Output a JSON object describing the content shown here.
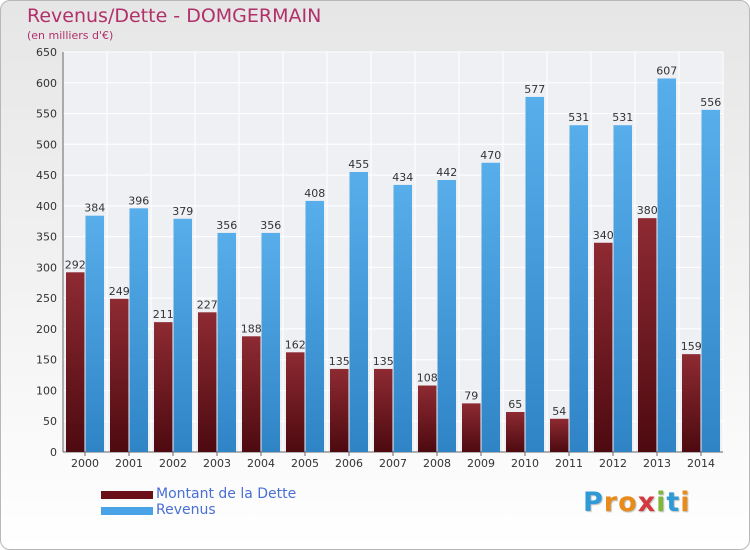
{
  "header": {
    "title": "Revenus/Dette - DOMGERMAIN",
    "subtitle": "(en milliers d'€)"
  },
  "legend": {
    "items": [
      {
        "label": "Montant de la Dette",
        "color": "#6b1018"
      },
      {
        "label": "Revenus",
        "color": "#4aa3e6"
      }
    ]
  },
  "logo": {
    "letters": [
      {
        "ch": "P",
        "color": "#2e9ad6"
      },
      {
        "ch": "r",
        "color": "#e88b1b"
      },
      {
        "ch": "o",
        "color": "#e88b1b"
      },
      {
        "ch": "x",
        "color": "#d5383d"
      },
      {
        "ch": "i",
        "color": "#7db83a"
      },
      {
        "ch": "t",
        "color": "#2e9ad6"
      },
      {
        "ch": "i",
        "color": "#e88b1b"
      }
    ]
  },
  "chart_data": {
    "type": "bar",
    "categories": [
      "2000",
      "2001",
      "2002",
      "2003",
      "2004",
      "2005",
      "2006",
      "2007",
      "2008",
      "2009",
      "2010",
      "2011",
      "2012",
      "2013",
      "2014"
    ],
    "series": [
      {
        "name": "Montant de la Dette",
        "color": "#6b1018",
        "values": [
          292,
          249,
          211,
          227,
          188,
          162,
          135,
          135,
          108,
          79,
          65,
          54,
          340,
          380,
          159
        ]
      },
      {
        "name": "Revenus",
        "color": "#4aa3e6",
        "values": [
          384,
          396,
          379,
          356,
          356,
          408,
          455,
          434,
          442,
          470,
          577,
          531,
          531,
          607,
          556
        ]
      }
    ],
    "ylim": [
      0,
      650
    ],
    "yticks": [
      0,
      50,
      100,
      150,
      200,
      250,
      300,
      350,
      400,
      450,
      500,
      550,
      600,
      650
    ],
    "grid": true,
    "legend_position": "bottom-left"
  }
}
